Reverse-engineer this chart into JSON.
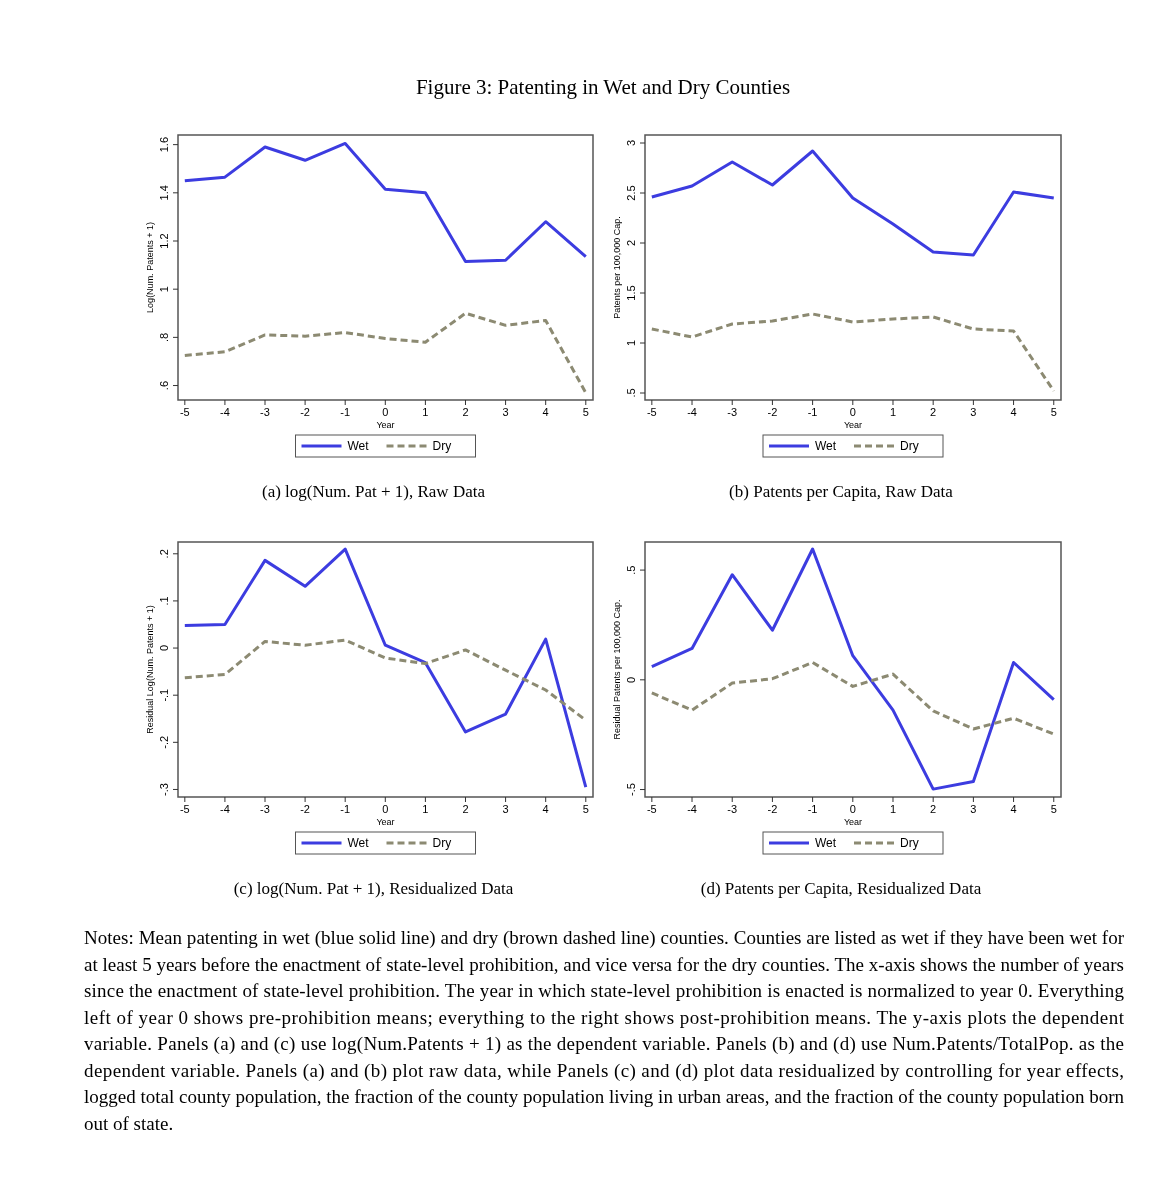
{
  "chart_data": [
    {
      "type": "line",
      "title": "Figure 3: Patenting in Wet and Dry Counties",
      "subtitle": "(a) log(Num. Pat + 1), Raw Data",
      "xlabel": "Year",
      "ylabel": "Log(Num. Patents + 1)",
      "x": [
        -5,
        -4,
        -3,
        -2,
        -1,
        0,
        1,
        2,
        3,
        4,
        5
      ],
      "xlim": [
        -5.17,
        5.18
      ],
      "xticks": [
        -5,
        -4,
        -3,
        -2,
        -1,
        0,
        1,
        2,
        3,
        4,
        5
      ],
      "ylim": [
        0.54,
        1.64
      ],
      "yticks": [
        {
          "value": 0.6,
          "label": ".6"
        },
        {
          "value": 0.8,
          "label": ".8"
        },
        1,
        1.2,
        1.4,
        1.6
      ],
      "grid": false,
      "legend": "bottom",
      "series": [
        {
          "name": "Wet",
          "color": "#3c3ce0",
          "line_style": "solid",
          "values": [
            1.45,
            1.465,
            1.59,
            1.535,
            1.605,
            1.415,
            1.4,
            1.115,
            1.12,
            1.28,
            1.135
          ]
        },
        {
          "name": "Dry",
          "color": "#8c8a72",
          "line_style": "dashed",
          "values": [
            0.725,
            0.74,
            0.81,
            0.805,
            0.82,
            0.795,
            0.78,
            0.9,
            0.85,
            0.87,
            0.57
          ]
        }
      ]
    },
    {
      "type": "line",
      "subtitle": "(b) Patents per Capita, Raw Data",
      "xlabel": "Year",
      "ylabel": "Patents per 100,000 Cap.",
      "x": [
        -5,
        -4,
        -3,
        -2,
        -1,
        0,
        1,
        2,
        3,
        4,
        5
      ],
      "xlim": [
        -5.17,
        5.18
      ],
      "xticks": [
        -5,
        -4,
        -3,
        -2,
        -1,
        0,
        1,
        2,
        3,
        4,
        5
      ],
      "ylim": [
        0.43,
        3.08
      ],
      "yticks": [
        {
          "value": 0.5,
          "label": ".5"
        },
        1,
        1.5,
        2,
        2.5,
        3
      ],
      "grid": false,
      "legend": "bottom",
      "series": [
        {
          "name": "Wet",
          "color": "#3c3ce0",
          "line_style": "solid",
          "values": [
            2.46,
            2.57,
            2.81,
            2.58,
            2.92,
            2.45,
            2.19,
            1.91,
            1.88,
            2.51,
            2.45
          ]
        },
        {
          "name": "Dry",
          "color": "#8c8a72",
          "line_style": "dashed",
          "values": [
            1.14,
            1.06,
            1.19,
            1.22,
            1.29,
            1.21,
            1.24,
            1.26,
            1.14,
            1.12,
            0.52
          ]
        }
      ]
    },
    {
      "type": "line",
      "subtitle": "(c) log(Num. Pat + 1), Residualized Data",
      "xlabel": "Year",
      "ylabel": "Residual Log(Num. Patents + 1)",
      "x": [
        -5,
        -4,
        -3,
        -2,
        -1,
        0,
        1,
        2,
        3,
        4,
        5
      ],
      "xlim": [
        -5.17,
        5.18
      ],
      "xticks": [
        -5,
        -4,
        -3,
        -2,
        -1,
        0,
        1,
        2,
        3,
        4,
        5
      ],
      "ylim": [
        -0.316,
        0.225
      ],
      "yticks": [
        {
          "value": -0.3,
          "label": "-.3"
        },
        {
          "value": -0.2,
          "label": "-.2"
        },
        {
          "value": -0.1,
          "label": "-.1"
        },
        0,
        {
          "value": 0.1,
          "label": ".1"
        },
        {
          "value": 0.2,
          "label": ".2"
        }
      ],
      "grid": false,
      "legend": "bottom",
      "series": [
        {
          "name": "Wet",
          "color": "#3c3ce0",
          "line_style": "solid",
          "values": [
            0.048,
            0.05,
            0.186,
            0.131,
            0.21,
            0.006,
            -0.031,
            -0.178,
            -0.14,
            0.019,
            -0.295
          ]
        },
        {
          "name": "Dry",
          "color": "#8c8a72",
          "line_style": "dashed",
          "values": [
            -0.063,
            -0.056,
            0.014,
            0.006,
            0.017,
            -0.021,
            -0.033,
            -0.004,
            -0.047,
            -0.089,
            -0.153
          ]
        }
      ]
    },
    {
      "type": "line",
      "subtitle": "(d) Patents per Capita, Residualized Data",
      "xlabel": "Year",
      "ylabel": "Residual Patents per 100,000 Cap.",
      "x": [
        -5,
        -4,
        -3,
        -2,
        -1,
        0,
        1,
        2,
        3,
        4,
        5
      ],
      "xlim": [
        -5.17,
        5.18
      ],
      "xticks": [
        -5,
        -4,
        -3,
        -2,
        -1,
        0,
        1,
        2,
        3,
        4,
        5
      ],
      "ylim": [
        -0.534,
        0.628
      ],
      "yticks": [
        {
          "value": -0.5,
          "label": "-.5"
        },
        0,
        {
          "value": 0.5,
          "label": ".5"
        }
      ],
      "grid": false,
      "legend": "bottom",
      "annotations": [
        "Notes: Mean patenting in wet (blue solid line) and dry (brown dashed line) counties. Counties are listed as wet if they have been wet for at least 5 years before the enactment of state-level prohibition, and vice versa for the dry counties. The x-axis shows the number of years since the enactment of state-level prohibition. The year in which state-level prohibition is enacted is normalized to year 0. Everything left of year 0 shows pre-prohibition means; everything to the right shows post-prohibition means. The y-axis plots the dependent variable. Panels (a) and (c) use log(Num.Patents + 1) as the dependent variable. Panels (b) and (d) use Num.Patents/TotalPop. as the dependent variable. Panels (a) and (b) plot raw data, while Panels (c) and (d) plot data residualized by controlling for year effects, logged total county population, the fraction of the county population living in urban areas, and the fraction of the county population born out of state."
      ],
      "series": [
        {
          "name": "Wet",
          "color": "#3c3ce0",
          "line_style": "solid",
          "values": [
            0.06,
            0.143,
            0.479,
            0.226,
            0.596,
            0.11,
            -0.138,
            -0.498,
            -0.463,
            0.079,
            -0.09
          ]
        },
        {
          "name": "Dry",
          "color": "#8c8a72",
          "line_style": "dashed",
          "values": [
            -0.06,
            -0.138,
            -0.015,
            0.005,
            0.079,
            -0.03,
            0.026,
            -0.142,
            -0.224,
            -0.175,
            -0.247
          ]
        }
      ]
    }
  ]
}
